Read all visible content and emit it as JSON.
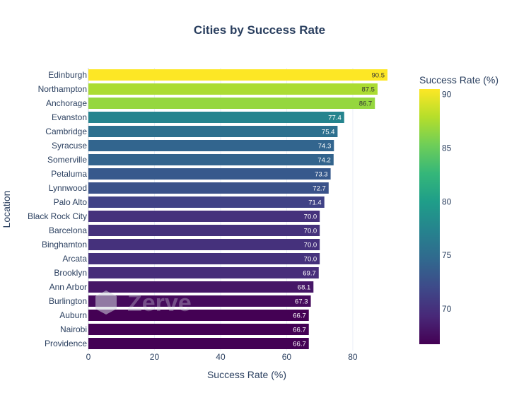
{
  "chart_data": {
    "type": "bar",
    "orientation": "horizontal",
    "title": "Cities by Success Rate",
    "xlabel": "Success Rate (%)",
    "ylabel": "Location",
    "xlim": [
      0,
      92
    ],
    "x_ticks": [
      0,
      20,
      40,
      60,
      80
    ],
    "categories": [
      "Edinburgh",
      "Northampton",
      "Anchorage",
      "Evanston",
      "Cambridge",
      "Syracuse",
      "Somerville",
      "Petaluma",
      "Lynnwood",
      "Palo Alto",
      "Black Rock City",
      "Barcelona",
      "Binghamton",
      "Arcata",
      "Brooklyn",
      "Ann Arbor",
      "Burlington",
      "Auburn",
      "Nairobi",
      "Providence"
    ],
    "values": [
      90.5,
      87.5,
      86.7,
      77.4,
      75.4,
      74.3,
      74.2,
      73.3,
      72.7,
      71.4,
      70.0,
      70.0,
      70.0,
      70.0,
      69.7,
      68.1,
      67.3,
      66.7,
      66.7,
      66.7
    ],
    "data_labels": [
      "90.5",
      "87.5",
      "86.7",
      "77.4",
      "75.4",
      "74.3",
      "74.2",
      "73.3",
      "72.7",
      "71.4",
      "70.0",
      "70.0",
      "70.0",
      "70.0",
      "69.7",
      "68.1",
      "67.3",
      "66.7",
      "66.7",
      "66.7"
    ],
    "grid": true,
    "colorscale": "viridis",
    "colorbar": {
      "title": "Success Rate (%)",
      "range": [
        66.7,
        90.5
      ],
      "ticks": [
        "70",
        "75",
        "80",
        "85",
        "90"
      ]
    },
    "watermark": "Zerve"
  }
}
